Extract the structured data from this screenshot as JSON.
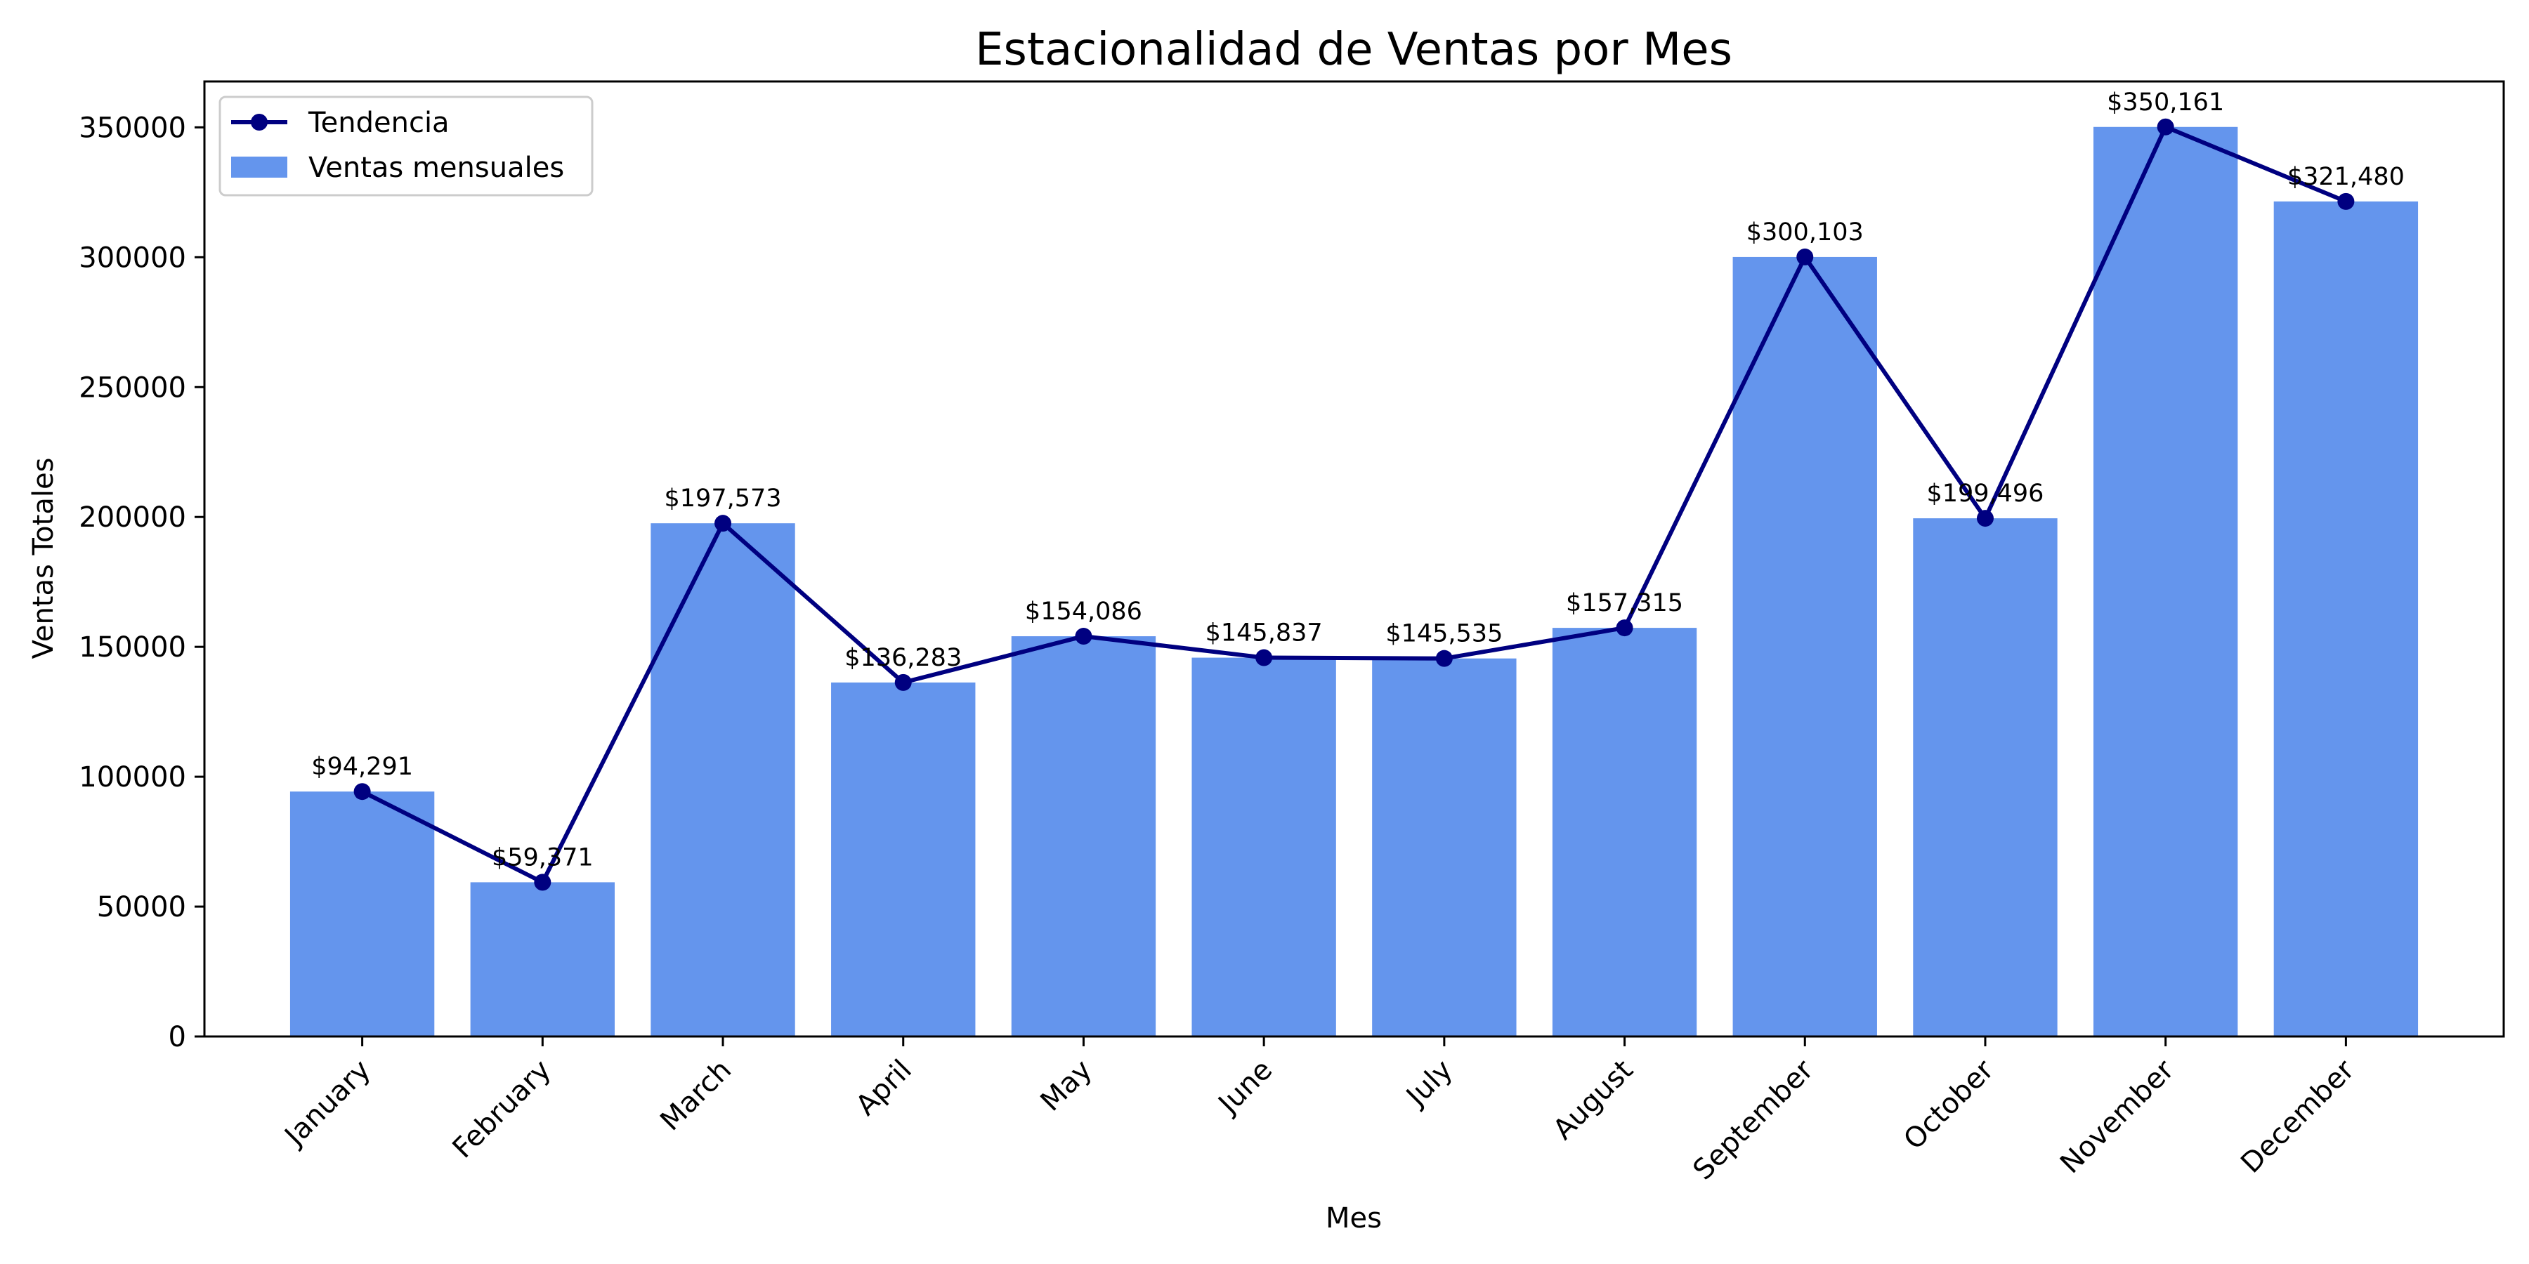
{
  "chart_data": {
    "type": "bar",
    "title": "Estacionalidad de Ventas por Mes",
    "xlabel": "Mes",
    "ylabel": "Ventas Totales",
    "categories": [
      "January",
      "February",
      "March",
      "April",
      "May",
      "June",
      "July",
      "August",
      "September",
      "October",
      "November",
      "December"
    ],
    "series": [
      {
        "name": "Ventas mensuales",
        "type": "bar",
        "color": "#6495ED",
        "values": [
          94291,
          59371,
          197573,
          136283,
          154086,
          145837,
          145535,
          157315,
          300103,
          199496,
          350161,
          321480
        ]
      },
      {
        "name": "Tendencia",
        "type": "line",
        "color": "#000080",
        "values": [
          94291,
          59371,
          197573,
          136283,
          154086,
          145837,
          145535,
          157315,
          300103,
          199496,
          350161,
          321480
        ]
      }
    ],
    "data_labels": [
      "$94,291",
      "$59,371",
      "$197,573",
      "$136,283",
      "$154,086",
      "$145,837",
      "$145,535",
      "$157,315",
      "$300,103",
      "$199,496",
      "$350,161",
      "$321,480"
    ],
    "ylim": [
      0,
      367669
    ],
    "yticks": [
      0,
      50000,
      100000,
      150000,
      200000,
      250000,
      300000,
      350000
    ],
    "ytick_labels": [
      "0",
      "50000",
      "100000",
      "150000",
      "200000",
      "250000",
      "300000",
      "350000"
    ],
    "grid": false,
    "legend": "upper-left"
  }
}
